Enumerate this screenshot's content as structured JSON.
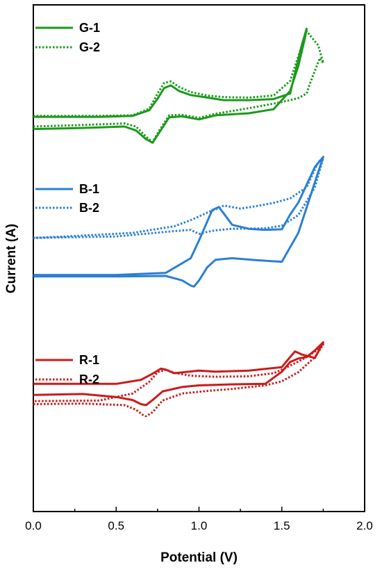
{
  "chart_data": {
    "type": "line",
    "xlabel": "Potential (V)",
    "ylabel": "Current (A)",
    "xlim": [
      0.0,
      2.0
    ],
    "xticks": [
      "0.0",
      "0.5",
      "1.0",
      "1.5",
      "2.0"
    ],
    "xtick_values": [
      0.0,
      0.5,
      1.0,
      1.5,
      2.0
    ],
    "y_ticks_shown": false,
    "units_note": "arbitrary stacked current scale (0 = bottom of plot, 100 = top)",
    "ylim": [
      0,
      100
    ],
    "grid": false,
    "legend_placement": "left, grouped per series pair",
    "series": [
      {
        "name": "G-1",
        "color": "#1a9a1a",
        "style": "solid",
        "x": [
          0.0,
          0.3,
          0.55,
          0.62,
          0.68,
          0.72,
          0.76,
          0.82,
          0.9,
          1.0,
          1.1,
          1.3,
          1.45,
          1.55,
          1.6,
          1.64,
          1.65,
          1.62,
          1.55,
          1.45,
          1.3,
          1.15,
          1.05,
          0.95,
          0.88,
          0.83,
          0.79,
          0.75,
          0.7,
          0.6,
          0.4,
          0.0
        ],
        "y": [
          75.5,
          75.7,
          76.0,
          75.2,
          73.5,
          72.8,
          74.8,
          77.8,
          78.0,
          77.4,
          78.2,
          78.6,
          79.4,
          83.0,
          88.0,
          93.5,
          95.3,
          92.0,
          82.5,
          81.4,
          81.2,
          81.2,
          81.7,
          82.2,
          83.0,
          84.1,
          83.6,
          81.5,
          79.2,
          78.1,
          77.9,
          77.9
        ]
      },
      {
        "name": "G-2",
        "color": "#1a9a1a",
        "style": "dotted",
        "x": [
          0.0,
          0.3,
          0.55,
          0.62,
          0.68,
          0.72,
          0.76,
          0.82,
          0.9,
          1.0,
          1.1,
          1.3,
          1.45,
          1.55,
          1.6,
          1.65,
          1.67,
          1.7,
          1.73,
          1.75,
          1.72,
          1.65,
          1.55,
          1.45,
          1.3,
          1.15,
          1.05,
          0.95,
          0.88,
          0.83,
          0.79,
          0.75,
          0.7,
          0.6,
          0.4,
          0.0
        ],
        "y": [
          76.0,
          76.3,
          76.6,
          76.0,
          74.0,
          72.9,
          75.2,
          78.2,
          78.3,
          77.7,
          78.5,
          79.6,
          80.5,
          81.2,
          81.6,
          82.5,
          84.5,
          87.0,
          89.5,
          88.5,
          92.0,
          94.8,
          85.0,
          82.1,
          81.7,
          81.8,
          82.1,
          82.8,
          83.8,
          84.9,
          84.6,
          82.5,
          79.5,
          78.2,
          78.1,
          78.1
        ]
      },
      {
        "name": "B-1",
        "color": "#2a7fd6",
        "style": "solid",
        "x": [
          0.0,
          0.5,
          0.8,
          0.9,
          0.95,
          0.97,
          1.0,
          1.05,
          1.1,
          1.2,
          1.35,
          1.5,
          1.6,
          1.7,
          1.75,
          1.7,
          1.6,
          1.55,
          1.5,
          1.4,
          1.3,
          1.2,
          1.15,
          1.12,
          1.08,
          1.0,
          0.95,
          0.8,
          0.5,
          0.0
        ],
        "y": [
          46.4,
          46.4,
          46.5,
          45.6,
          44.6,
          44.4,
          45.6,
          48.2,
          49.7,
          50.0,
          49.6,
          49.3,
          55.0,
          65.0,
          70.0,
          68.0,
          61.0,
          58.6,
          55.7,
          55.6,
          55.8,
          56.6,
          58.8,
          60.1,
          59.5,
          53.5,
          50.0,
          47.1,
          46.7,
          46.7
        ]
      },
      {
        "name": "B-2",
        "color": "#2a7fd6",
        "style": "dotted",
        "x": [
          0.0,
          0.5,
          0.8,
          0.95,
          1.0,
          1.05,
          1.1,
          1.2,
          1.4,
          1.5,
          1.6,
          1.7,
          1.75,
          1.72,
          1.65,
          1.55,
          1.45,
          1.35,
          1.25,
          1.15,
          1.12,
          1.05,
          0.95,
          0.85,
          0.6,
          0.2,
          0.0
        ],
        "y": [
          54.0,
          54.3,
          55.2,
          55.6,
          54.8,
          55.2,
          55.5,
          55.8,
          55.9,
          56.4,
          58.5,
          64.0,
          69.8,
          69.0,
          64.0,
          61.8,
          60.9,
          60.3,
          59.8,
          60.4,
          59.9,
          59.0,
          57.5,
          56.3,
          55.0,
          54.3,
          54.0
        ]
      },
      {
        "name": "R-1",
        "color": "#cc1a1a",
        "style": "solid",
        "x": [
          0.0,
          0.3,
          0.5,
          0.6,
          0.65,
          0.68,
          0.72,
          0.78,
          0.9,
          1.0,
          1.2,
          1.4,
          1.5,
          1.55,
          1.6,
          1.65,
          1.7,
          1.75,
          1.7,
          1.62,
          1.58,
          1.55,
          1.5,
          1.3,
          1.1,
          1.0,
          0.85,
          0.8,
          0.77,
          0.72,
          0.65,
          0.5,
          0.0
        ],
        "y": [
          23.0,
          23.2,
          22.6,
          22.0,
          21.2,
          21.0,
          22.0,
          23.7,
          24.6,
          24.9,
          25.1,
          25.2,
          27.6,
          29.5,
          30.2,
          30.5,
          31.8,
          33.4,
          30.3,
          31.0,
          31.6,
          30.5,
          28.5,
          27.8,
          27.6,
          27.8,
          27.3,
          28.0,
          28.2,
          27.2,
          26.0,
          25.2,
          25.2
        ]
      },
      {
        "name": "R-2",
        "color": "#cc1a1a",
        "style": "dotted",
        "x": [
          0.0,
          0.3,
          0.55,
          0.62,
          0.66,
          0.68,
          0.72,
          0.78,
          0.9,
          1.05,
          1.2,
          1.4,
          1.5,
          1.6,
          1.7,
          1.75,
          1.72,
          1.65,
          1.6,
          1.52,
          1.45,
          1.3,
          1.1,
          0.95,
          0.85,
          0.8,
          0.75,
          0.7,
          0.6,
          0.4,
          0.0
        ],
        "y": [
          21.2,
          21.3,
          21.0,
          20.1,
          19.1,
          18.8,
          19.6,
          21.9,
          23.3,
          23.8,
          24.2,
          24.9,
          25.7,
          27.5,
          30.5,
          33.0,
          32.0,
          30.5,
          29.6,
          28.3,
          27.3,
          26.7,
          26.6,
          26.8,
          27.4,
          28.0,
          27.5,
          25.6,
          23.3,
          21.9,
          21.8
        ]
      }
    ]
  }
}
